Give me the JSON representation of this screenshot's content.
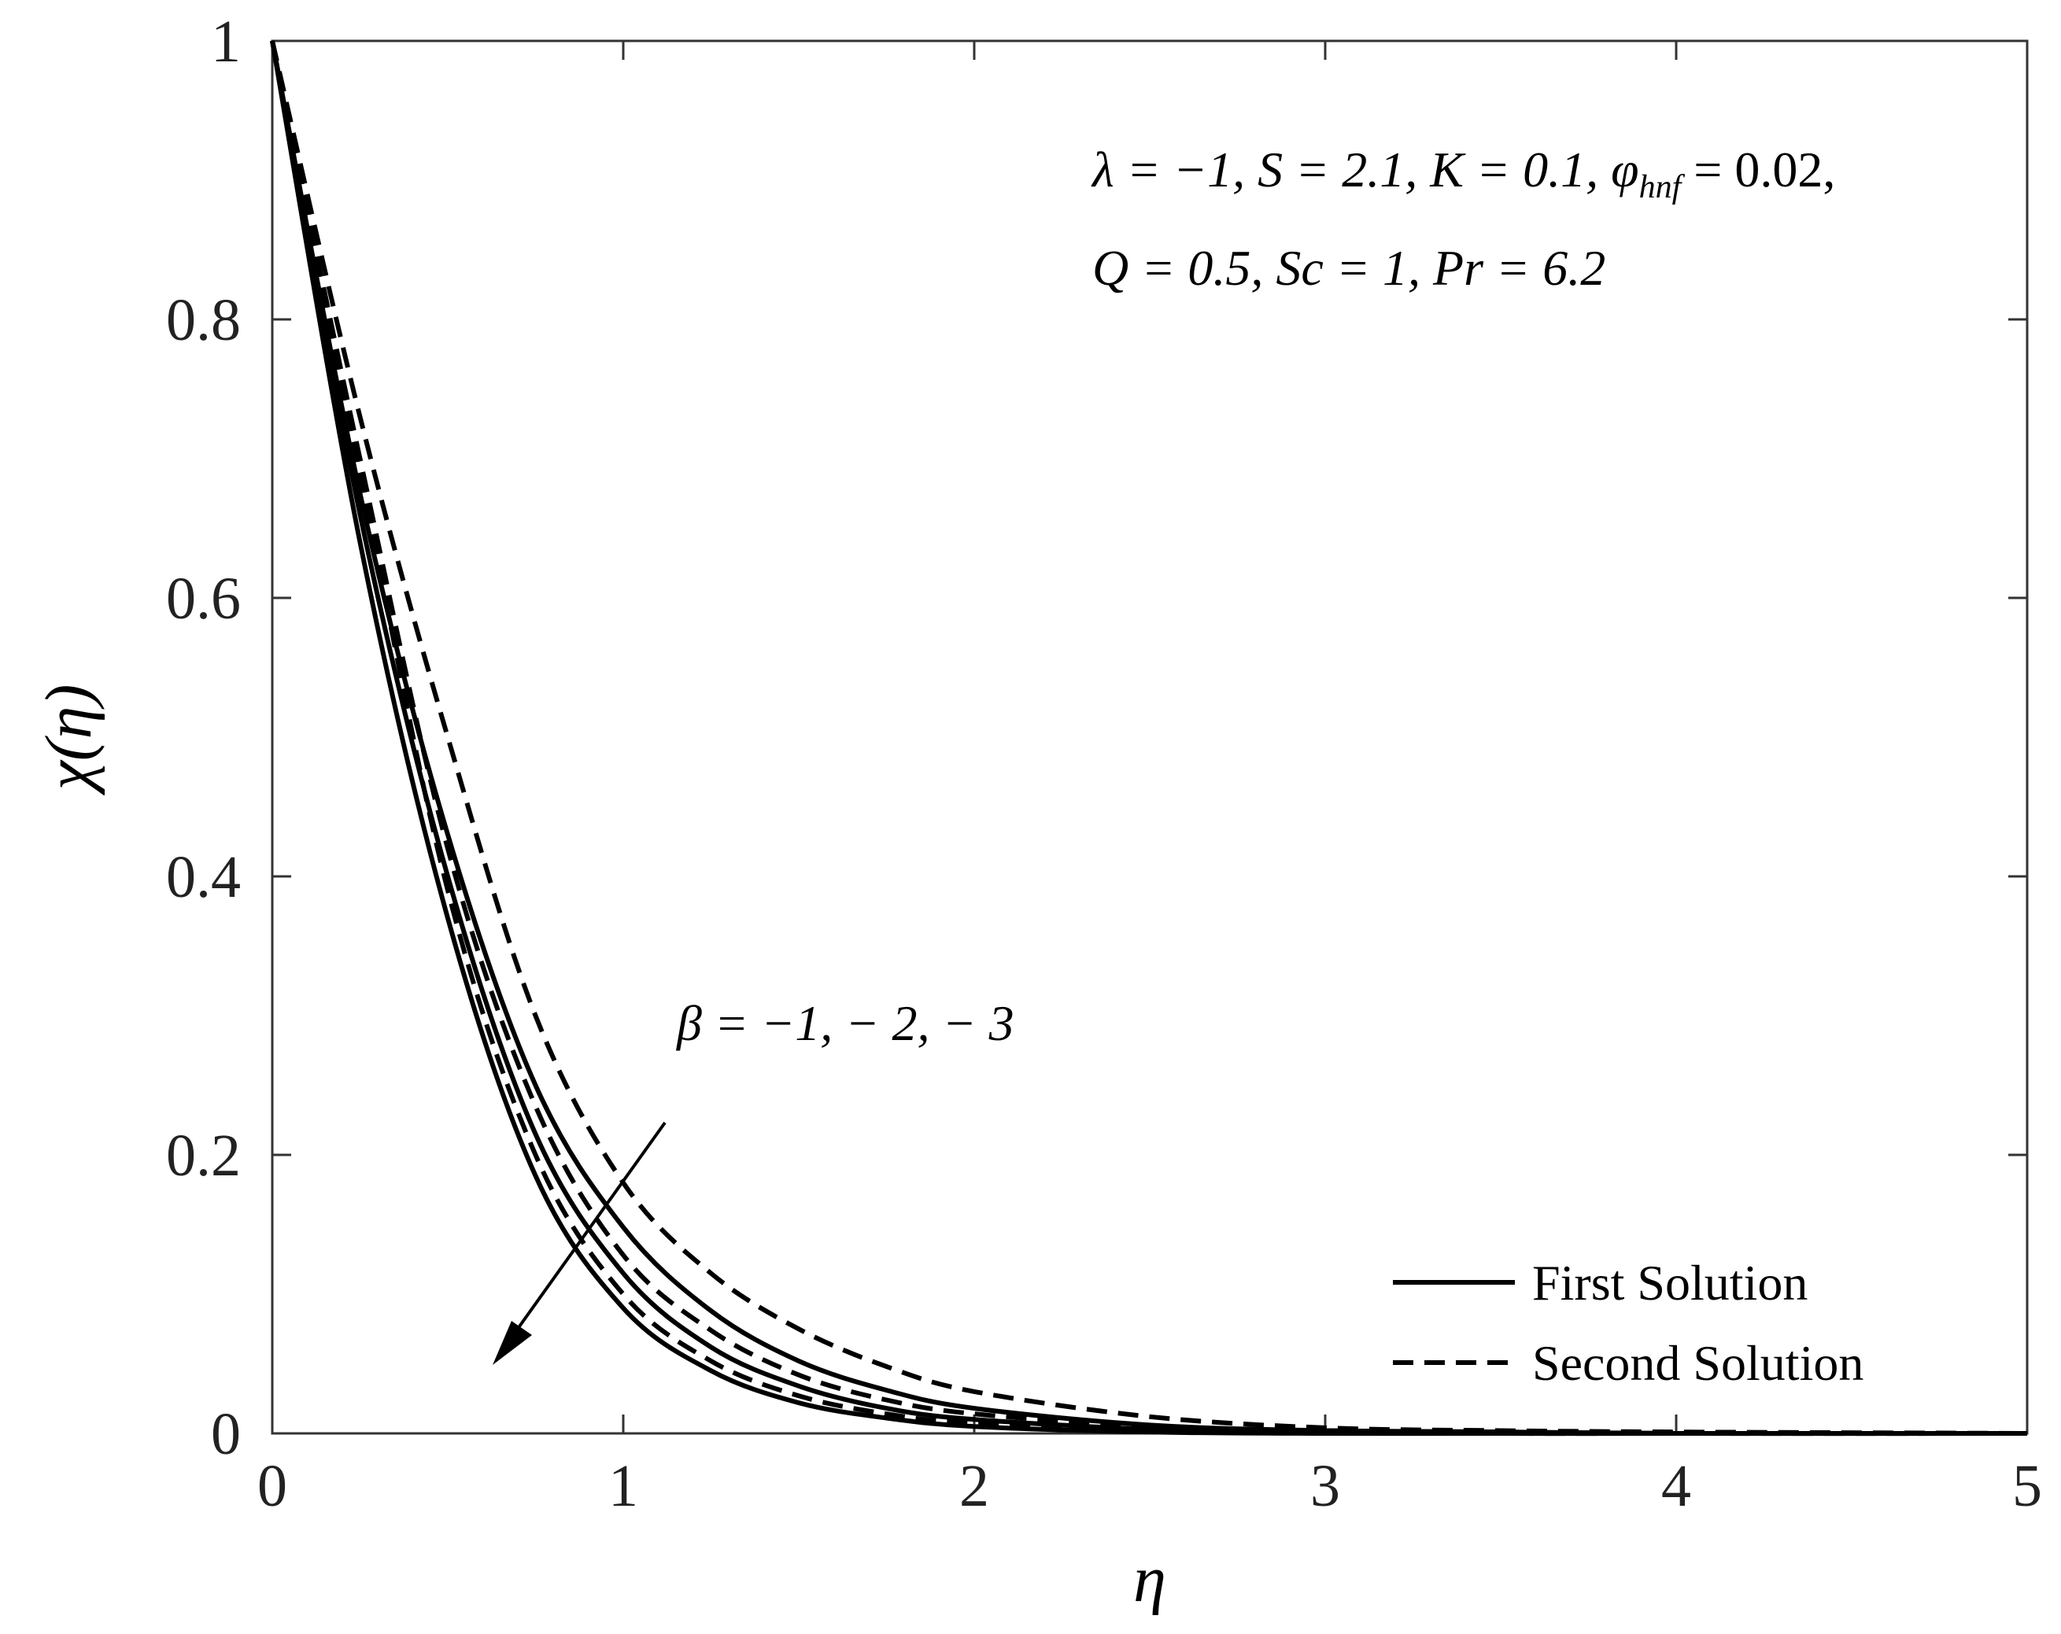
{
  "chart_data": {
    "type": "line",
    "xlabel": "η",
    "ylabel": "χ(η)",
    "xlim": [
      0,
      5
    ],
    "ylim": [
      0,
      1
    ],
    "xticks": [
      "0",
      "1",
      "2",
      "3",
      "4",
      "5"
    ],
    "yticks": [
      "0",
      "0.2",
      "0.4",
      "0.6",
      "0.8",
      "1"
    ],
    "grid": false,
    "legend_position": "bottom-right",
    "legend": [
      {
        "label": "First Solution",
        "style": "solid"
      },
      {
        "label": "Second Solution",
        "style": "dashed"
      }
    ],
    "parameters_annotation": {
      "line1": {
        "lambda": "λ = −1,",
        "S": "S = 2.1,",
        "K": "K = 0.1,",
        "phi_symbol": "φ",
        "phi_sub": "hnf",
        "phi_value": " = 0.02,"
      },
      "line2": "Q = 0.5, Sc = 1, Pr = 6.2"
    },
    "arrow_annotation": "β = −1, − 2, − 3",
    "series": [
      {
        "legend_ref": "First Solution",
        "beta": "-1",
        "style": "solid",
        "x": [
          0,
          0.25,
          0.5,
          0.75,
          1.0,
          1.25,
          1.5,
          1.75,
          2.0,
          2.5,
          3.0,
          3.5,
          4.0,
          5.0
        ],
        "y": [
          1.0,
          0.675,
          0.43,
          0.25,
          0.148,
          0.088,
          0.052,
          0.031,
          0.018,
          0.006,
          0.002,
          0.001,
          0.0,
          0.0
        ]
      },
      {
        "legend_ref": "First Solution",
        "beta": "-2",
        "style": "solid",
        "x": [
          0,
          0.25,
          0.5,
          0.75,
          1.0,
          1.25,
          1.5,
          1.75,
          2.0,
          2.5,
          3.0,
          3.5,
          4.0,
          5.0
        ],
        "y": [
          1.0,
          0.66,
          0.4,
          0.215,
          0.115,
          0.062,
          0.034,
          0.018,
          0.01,
          0.003,
          0.001,
          0.0,
          0.0,
          0.0
        ]
      },
      {
        "legend_ref": "First Solution",
        "beta": "-3",
        "style": "solid",
        "x": [
          0,
          0.25,
          0.5,
          0.75,
          1.0,
          1.25,
          1.5,
          1.75,
          2.0,
          2.5,
          3.0,
          3.5,
          4.0,
          5.0
        ],
        "y": [
          1.0,
          0.64,
          0.37,
          0.185,
          0.09,
          0.045,
          0.022,
          0.011,
          0.005,
          0.001,
          0.0,
          0.0,
          0.0,
          0.0
        ]
      },
      {
        "legend_ref": "Second Solution",
        "beta": "-1",
        "style": "dashed",
        "x": [
          0,
          0.25,
          0.5,
          0.75,
          1.0,
          1.25,
          1.5,
          1.75,
          2.0,
          2.5,
          3.0,
          3.5,
          4.0,
          5.0
        ],
        "y": [
          1.0,
          0.73,
          0.5,
          0.3,
          0.18,
          0.115,
          0.075,
          0.048,
          0.03,
          0.012,
          0.004,
          0.002,
          0.001,
          0.0
        ]
      },
      {
        "legend_ref": "Second Solution",
        "beta": "-2",
        "style": "dashed",
        "x": [
          0,
          0.25,
          0.5,
          0.75,
          1.0,
          1.25,
          1.5,
          1.75,
          2.0,
          2.5,
          3.0,
          3.5,
          4.0,
          5.0
        ],
        "y": [
          1.0,
          0.7,
          0.42,
          0.235,
          0.128,
          0.074,
          0.042,
          0.024,
          0.014,
          0.005,
          0.002,
          0.001,
          0.0,
          0.0
        ]
      },
      {
        "legend_ref": "Second Solution",
        "beta": "-3",
        "style": "dashed",
        "x": [
          0,
          0.25,
          0.5,
          0.75,
          1.0,
          1.25,
          1.5,
          1.75,
          2.0,
          2.5,
          3.0,
          3.5,
          4.0,
          5.0
        ],
        "y": [
          1.0,
          0.69,
          0.39,
          0.2,
          0.1,
          0.052,
          0.027,
          0.014,
          0.007,
          0.002,
          0.001,
          0.0,
          0.0,
          0.0
        ]
      }
    ]
  },
  "colors": {
    "line": "#000000",
    "axes": "#333333",
    "background": "#ffffff"
  }
}
